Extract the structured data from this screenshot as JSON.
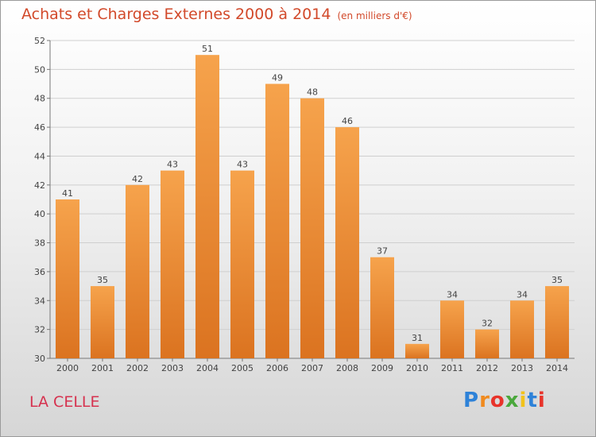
{
  "title": "Achats et Charges Externes 2000 à 2014",
  "unit_note": "(en milliers d'€)",
  "commune": "LA CELLE",
  "logo": {
    "letters": [
      {
        "ch": "P",
        "color": "#2e82d8"
      },
      {
        "ch": "r",
        "color": "#f08a1e"
      },
      {
        "ch": "o",
        "color": "#e8332a"
      },
      {
        "ch": "x",
        "color": "#4aa83c"
      },
      {
        "ch": "i",
        "color": "#f2c21b"
      },
      {
        "ch": "t",
        "color": "#2e82d8"
      },
      {
        "ch": "i",
        "color": "#e8332a"
      }
    ]
  },
  "colors": {
    "title": "#d2492a",
    "commune": "#d6324f",
    "bar_top": "#f6a34c",
    "bar_bottom": "#db7320"
  },
  "chart_data": {
    "type": "bar",
    "categories": [
      "2000",
      "2001",
      "2002",
      "2003",
      "2004",
      "2005",
      "2006",
      "2007",
      "2008",
      "2009",
      "2010",
      "2011",
      "2012",
      "2013",
      "2014"
    ],
    "values": [
      41,
      35,
      42,
      43,
      51,
      43,
      49,
      48,
      46,
      37,
      31,
      34,
      32,
      34,
      35
    ],
    "ylim": [
      30,
      52
    ],
    "yticks": [
      30,
      32,
      34,
      36,
      38,
      40,
      42,
      44,
      46,
      48,
      50,
      52
    ],
    "grid": true,
    "data_labels": true
  }
}
